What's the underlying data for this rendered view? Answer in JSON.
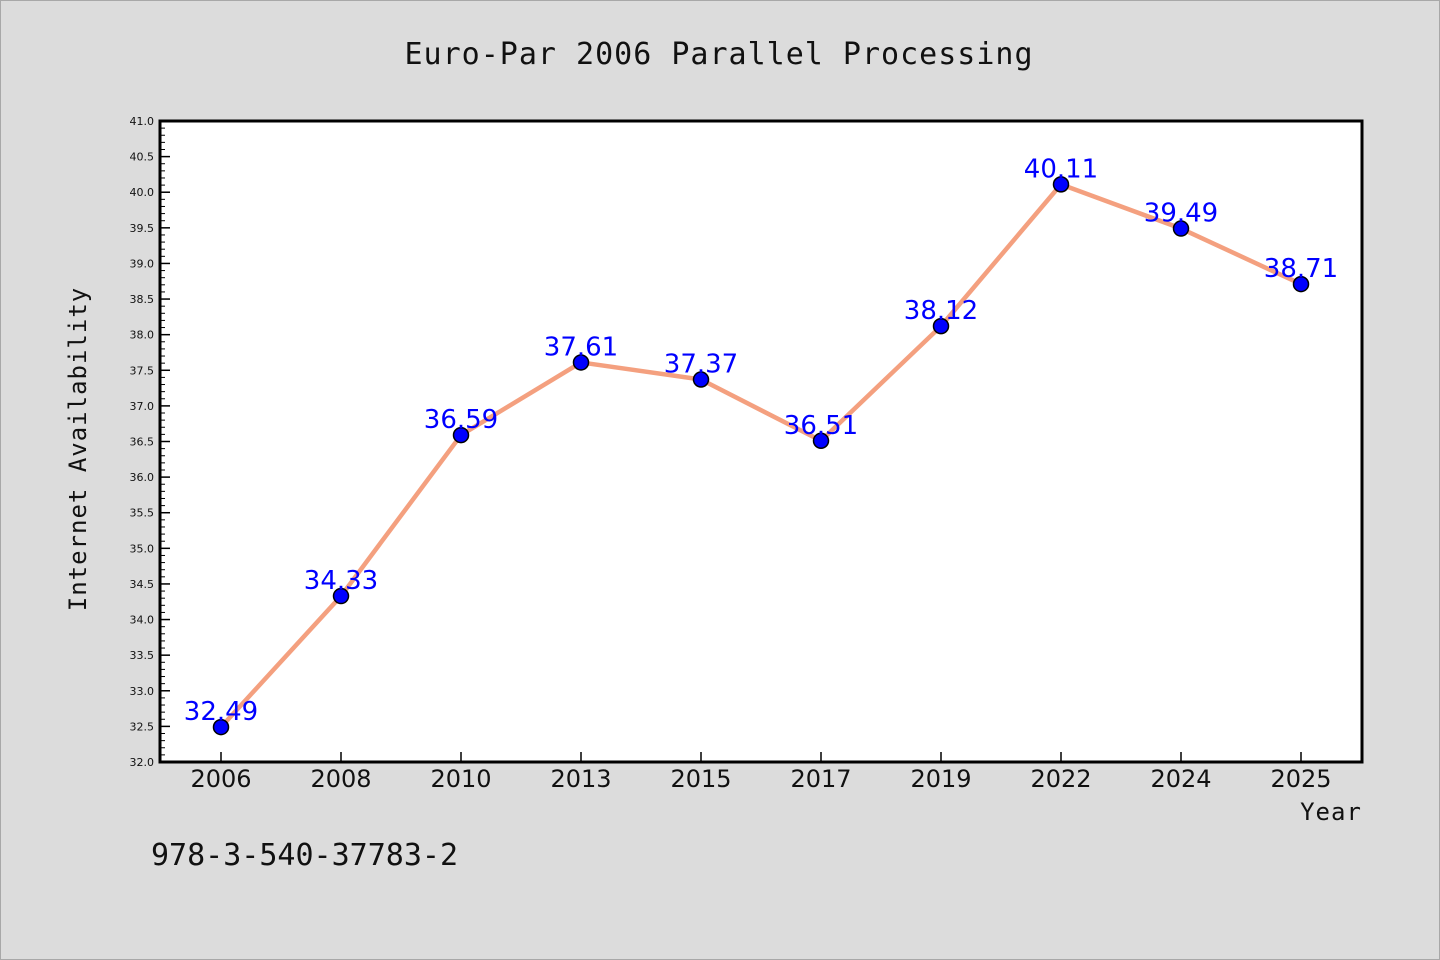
{
  "colors": {
    "background": "#dcdcdc",
    "plot_background": "#ffffff",
    "line": "#f4a07f",
    "marker": "#0000ff",
    "data_label": "#0000ff",
    "axis": "#000000"
  },
  "footnote": "978-3-540-37783-2",
  "chart_data": {
    "type": "line",
    "title": "Euro-Par 2006 Parallel Processing",
    "xlabel": "Year",
    "ylabel": "Internet Availability",
    "categories": [
      "2006",
      "2008",
      "2010",
      "2013",
      "2015",
      "2017",
      "2019",
      "2022",
      "2024",
      "2025"
    ],
    "series": [
      {
        "values": [
          32.49,
          34.33,
          36.59,
          37.61,
          37.37,
          36.51,
          38.12,
          40.11,
          39.49,
          38.71
        ]
      }
    ],
    "data_labels": [
      "32.49",
      "34.33",
      "36.59",
      "37.61",
      "37.37",
      "36.51",
      "38.12",
      "40.11",
      "39.49",
      "38.71"
    ],
    "ylim": [
      32.0,
      41.0
    ],
    "yticks": [
      "32.0",
      "32.5",
      "33.0",
      "33.5",
      "34.0",
      "34.5",
      "35.0",
      "35.5",
      "36.0",
      "36.5",
      "37.0",
      "37.5",
      "38.0",
      "38.5",
      "39.0",
      "39.5",
      "40.0",
      "40.5",
      "41.0"
    ],
    "grid": false,
    "legend": "none"
  }
}
